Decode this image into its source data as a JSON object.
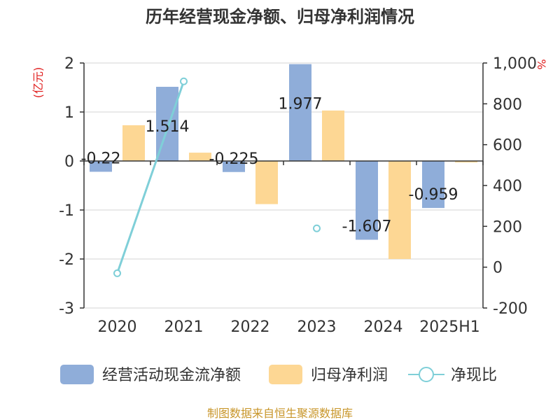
{
  "chart_data": {
    "type": "bar",
    "title": "历年经营现金净额、归母净利润情况",
    "categories": [
      "2020",
      "2021",
      "2022",
      "2023",
      "2024",
      "2025H1"
    ],
    "left_axis": {
      "unit_label": "(亿元)",
      "ylim": [
        -3,
        2
      ],
      "ticks": [
        2,
        1,
        0,
        -1,
        -2,
        -3
      ]
    },
    "right_axis": {
      "unit_label": "%",
      "ylim": [
        -200,
        1000
      ],
      "ticks": [
        "1,000",
        "800",
        "600",
        "400",
        "200",
        "0",
        "-200"
      ],
      "tick_values": [
        1000,
        800,
        600,
        400,
        200,
        0,
        -200
      ]
    },
    "series": [
      {
        "name": "经营活动现金流净额",
        "kind": "bar",
        "axis": "left",
        "color": "#8fadd9",
        "values": [
          -0.22,
          1.514,
          -0.225,
          1.977,
          -1.607,
          -0.959
        ],
        "labels": [
          "-0.22",
          "1.514",
          "-0.225",
          "1.977",
          "-1.607",
          "-0.959"
        ]
      },
      {
        "name": "归母净利润",
        "kind": "bar",
        "axis": "left",
        "color": "#fdd794",
        "values": [
          0.73,
          0.17,
          -0.88,
          1.03,
          -2.0,
          -0.03
        ]
      },
      {
        "name": "净现比",
        "kind": "line",
        "axis": "right",
        "color": "#7fcfd8",
        "values": [
          -30,
          910,
          null,
          190,
          null,
          null
        ]
      }
    ],
    "legend_position": "bottom",
    "grid": true
  },
  "footer": {
    "source": "制图数据来自恒生聚源数据库"
  }
}
